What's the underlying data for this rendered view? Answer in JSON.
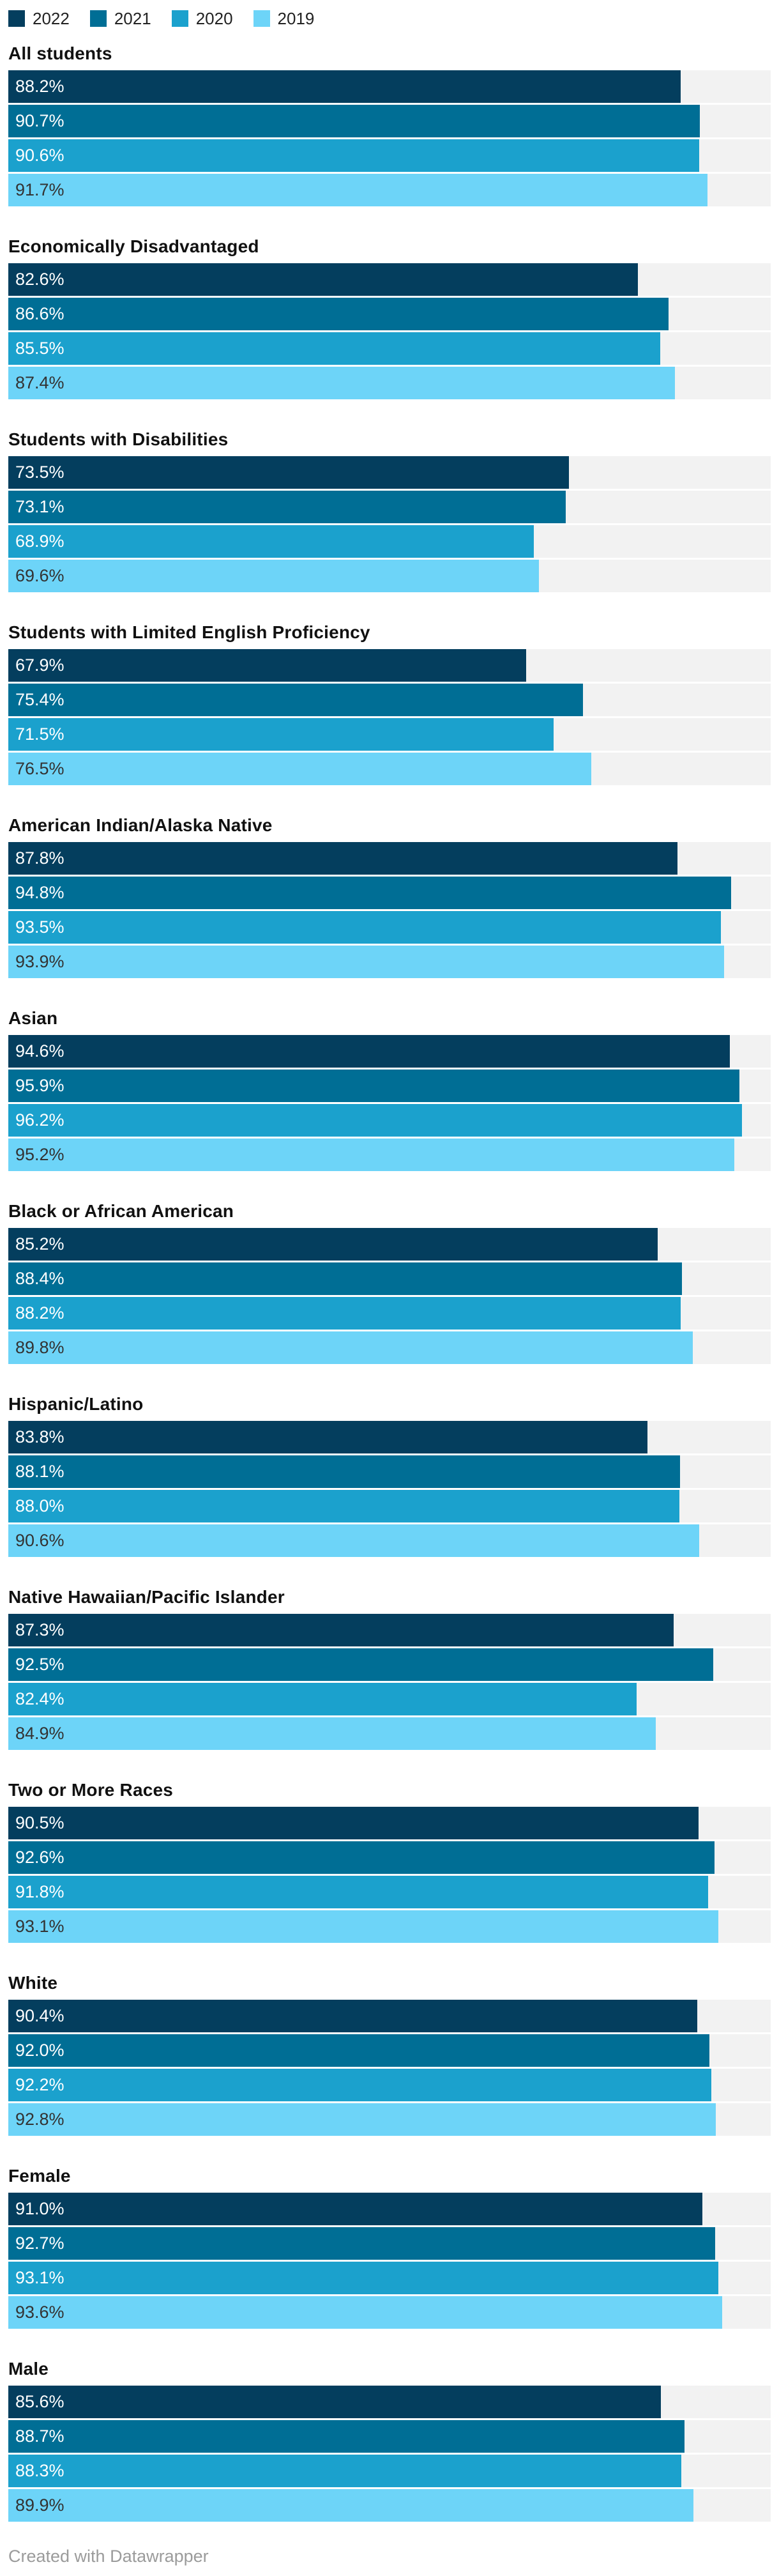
{
  "legend": {
    "items": [
      {
        "year": "2022",
        "color": "#043E5E"
      },
      {
        "year": "2021",
        "color": "#006E95"
      },
      {
        "year": "2020",
        "color": "#1BA1CD"
      },
      {
        "year": "2019",
        "color": "#6DD4F8"
      }
    ]
  },
  "chart_data": {
    "type": "bar",
    "orientation": "horizontal",
    "unit": "percent",
    "xlim": [
      0,
      100
    ],
    "grid": false,
    "legend_position": "top",
    "track_color": "#F2F2F2",
    "series_years": [
      "2022",
      "2021",
      "2020",
      "2019"
    ],
    "series_colors": [
      "#043E5E",
      "#006E95",
      "#1BA1CD",
      "#6DD4F8"
    ],
    "value_text_colors": [
      "#FFFFFF",
      "#FFFFFF",
      "#FFFFFF",
      "#333333"
    ],
    "groups": [
      {
        "label": "All students",
        "values": [
          88.2,
          90.7,
          90.6,
          91.7
        ],
        "value_labels": [
          "88.2%",
          "90.7%",
          "90.6%",
          "91.7%"
        ]
      },
      {
        "label": "Economically Disadvantaged",
        "values": [
          82.6,
          86.6,
          85.5,
          87.4
        ],
        "value_labels": [
          "82.6%",
          "86.6%",
          "85.5%",
          "87.4%"
        ]
      },
      {
        "label": "Students with Disabilities",
        "values": [
          73.5,
          73.1,
          68.9,
          69.6
        ],
        "value_labels": [
          "73.5%",
          "73.1%",
          "68.9%",
          "69.6%"
        ]
      },
      {
        "label": "Students with Limited English Proficiency",
        "values": [
          67.9,
          75.4,
          71.5,
          76.5
        ],
        "value_labels": [
          "67.9%",
          "75.4%",
          "71.5%",
          "76.5%"
        ]
      },
      {
        "label": "American Indian/Alaska Native",
        "values": [
          87.8,
          94.8,
          93.5,
          93.9
        ],
        "value_labels": [
          "87.8%",
          "94.8%",
          "93.5%",
          "93.9%"
        ]
      },
      {
        "label": "Asian",
        "values": [
          94.6,
          95.9,
          96.2,
          95.2
        ],
        "value_labels": [
          "94.6%",
          "95.9%",
          "96.2%",
          "95.2%"
        ]
      },
      {
        "label": "Black or African American",
        "values": [
          85.2,
          88.4,
          88.2,
          89.8
        ],
        "value_labels": [
          "85.2%",
          "88.4%",
          "88.2%",
          "89.8%"
        ]
      },
      {
        "label": "Hispanic/Latino",
        "values": [
          83.8,
          88.1,
          88.0,
          90.6
        ],
        "value_labels": [
          "83.8%",
          "88.1%",
          "88.0%",
          "90.6%"
        ]
      },
      {
        "label": "Native Hawaiian/Pacific Islander",
        "values": [
          87.3,
          92.5,
          82.4,
          84.9
        ],
        "value_labels": [
          "87.3%",
          "92.5%",
          "82.4%",
          "84.9%"
        ]
      },
      {
        "label": "Two or More Races",
        "values": [
          90.5,
          92.6,
          91.8,
          93.1
        ],
        "value_labels": [
          "90.5%",
          "92.6%",
          "91.8%",
          "93.1%"
        ]
      },
      {
        "label": "White",
        "values": [
          90.4,
          92.0,
          92.2,
          92.8
        ],
        "value_labels": [
          "90.4%",
          "92.0%",
          "92.2%",
          "92.8%"
        ]
      },
      {
        "label": "Female",
        "values": [
          91.0,
          92.7,
          93.1,
          93.6
        ],
        "value_labels": [
          "91.0%",
          "92.7%",
          "93.1%",
          "93.6%"
        ]
      },
      {
        "label": "Male",
        "values": [
          85.6,
          88.7,
          88.3,
          89.9
        ],
        "value_labels": [
          "85.6%",
          "88.7%",
          "88.3%",
          "89.9%"
        ]
      }
    ]
  },
  "footer": {
    "credit": "Created with Datawrapper"
  }
}
